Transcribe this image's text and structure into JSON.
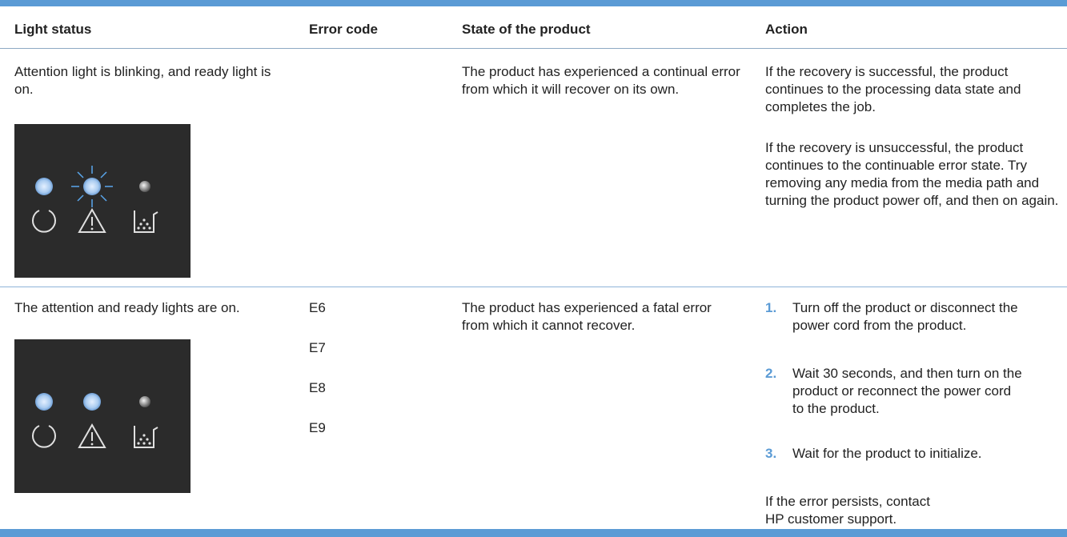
{
  "table": {
    "headers": [
      "Light status",
      "Error code",
      "State of the product",
      "Action"
    ],
    "rows": [
      {
        "light_status": "Attention light is blinking, and ready light is on.",
        "error_codes": [],
        "state": "The product has experienced a continual error from which it will recover on its own.",
        "action": {
          "paragraphs": [
            "If the recovery is successful, the product continues to the processing data state and completes the job.",
            "If the recovery is unsuccessful, the product continues to the continuable error state. Try removing any media from the media path and turning the product power off, and then on again."
          ]
        }
      },
      {
        "light_status": "The attention and ready lights are on.",
        "error_codes": [
          "E6",
          "E7",
          "E8",
          "E9"
        ],
        "state": "The product has experienced a fatal error from which it cannot recover.",
        "action": {
          "steps": [
            {
              "number": "1.",
              "text": "Turn off the product or disconnect the power cord from the product."
            },
            {
              "number": "2.",
              "text": "Wait 30 seconds, and then turn on the product or reconnect the power cord to the product."
            },
            {
              "number": "3.",
              "text": "Wait for the product to initialize."
            }
          ],
          "note_lines": [
            "If the error persists, contact",
            "HP customer support."
          ]
        }
      }
    ]
  }
}
